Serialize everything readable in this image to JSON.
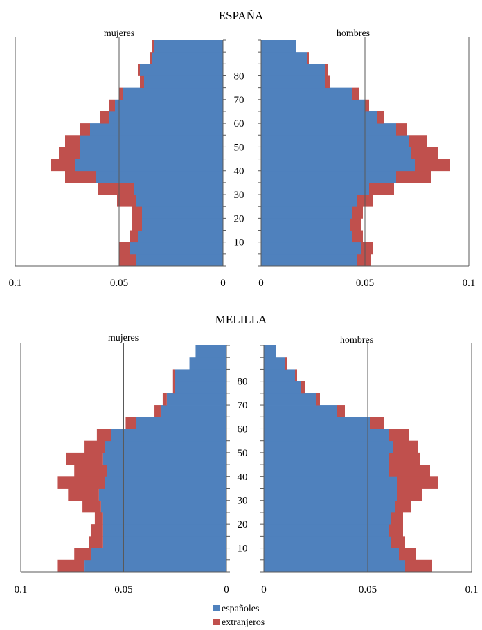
{
  "legend": {
    "items": [
      {
        "label": "españoles",
        "color": "#4F81BD"
      },
      {
        "label": "extranjeros",
        "color": "#C0504D"
      }
    ]
  },
  "chart_data": [
    {
      "type": "bar",
      "orientation": "horizontal",
      "layout": "population-pyramid",
      "title": "ESPAÑA",
      "left_label": "mujeres",
      "right_label": "hombres",
      "age_labels": [
        "10",
        "20",
        "30",
        "40",
        "50",
        "60",
        "70",
        "80"
      ],
      "x_ticks": [
        "0.1",
        "0.05",
        "0"
      ],
      "x_ticks_right": [
        "0",
        "0.05",
        "0.1"
      ],
      "xlim": [
        0,
        0.1
      ],
      "age_range": [
        0,
        95
      ],
      "bin_width": 5,
      "bins_start": [
        0,
        5,
        10,
        15,
        20,
        25,
        30,
        35,
        40,
        45,
        50,
        55,
        60,
        65,
        70,
        75,
        80,
        85,
        90
      ],
      "mujeres": {
        "espanoles": [
          0.042,
          0.045,
          0.041,
          0.039,
          0.039,
          0.042,
          0.043,
          0.061,
          0.071,
          0.069,
          0.069,
          0.064,
          0.055,
          0.052,
          0.048,
          0.038,
          0.04,
          0.034,
          0.033
        ],
        "extranjeros": [
          0.008,
          0.005,
          0.004,
          0.005,
          0.005,
          0.009,
          0.017,
          0.015,
          0.012,
          0.01,
          0.007,
          0.005,
          0.004,
          0.003,
          0.002,
          0.002,
          0.001,
          0.001,
          0.001
        ]
      },
      "hombres": {
        "espanoles": [
          0.046,
          0.048,
          0.044,
          0.043,
          0.044,
          0.046,
          0.052,
          0.065,
          0.074,
          0.072,
          0.071,
          0.065,
          0.056,
          0.05,
          0.044,
          0.031,
          0.031,
          0.022,
          0.017
        ],
        "extranjeros": [
          0.007,
          0.006,
          0.005,
          0.005,
          0.005,
          0.008,
          0.012,
          0.017,
          0.017,
          0.013,
          0.009,
          0.005,
          0.003,
          0.002,
          0.003,
          0.002,
          0.001,
          0.001,
          0.0
        ]
      }
    },
    {
      "type": "bar",
      "orientation": "horizontal",
      "layout": "population-pyramid",
      "title": "MELILLA",
      "left_label": "mujeres",
      "right_label": "hombres",
      "age_labels": [
        "10",
        "20",
        "30",
        "40",
        "50",
        "60",
        "70",
        "80"
      ],
      "x_ticks": [
        "0.1",
        "0.05",
        "0"
      ],
      "x_ticks_right": [
        "0",
        "0.05",
        "0.1"
      ],
      "xlim": [
        0,
        0.1
      ],
      "age_range": [
        0,
        95
      ],
      "bin_width": 5,
      "bins_start": [
        0,
        5,
        10,
        15,
        20,
        25,
        30,
        35,
        40,
        45,
        50,
        55,
        60,
        65,
        70,
        75,
        80,
        85,
        90
      ],
      "mujeres": {
        "espanoles": [
          0.069,
          0.066,
          0.06,
          0.06,
          0.06,
          0.061,
          0.062,
          0.059,
          0.058,
          0.06,
          0.059,
          0.056,
          0.044,
          0.032,
          0.029,
          0.025,
          0.025,
          0.018,
          0.015
        ],
        "extranjeros": [
          0.013,
          0.008,
          0.007,
          0.006,
          0.004,
          0.009,
          0.015,
          0.023,
          0.016,
          0.018,
          0.01,
          0.007,
          0.005,
          0.003,
          0.002,
          0.001,
          0.001,
          0.0,
          0.0
        ]
      },
      "hombres": {
        "espanoles": [
          0.068,
          0.065,
          0.061,
          0.06,
          0.061,
          0.063,
          0.064,
          0.064,
          0.06,
          0.06,
          0.062,
          0.06,
          0.051,
          0.035,
          0.025,
          0.018,
          0.015,
          0.01,
          0.006
        ],
        "extranjeros": [
          0.013,
          0.008,
          0.007,
          0.007,
          0.006,
          0.008,
          0.012,
          0.02,
          0.02,
          0.015,
          0.012,
          0.01,
          0.007,
          0.004,
          0.002,
          0.002,
          0.001,
          0.001,
          0.0
        ]
      }
    }
  ]
}
